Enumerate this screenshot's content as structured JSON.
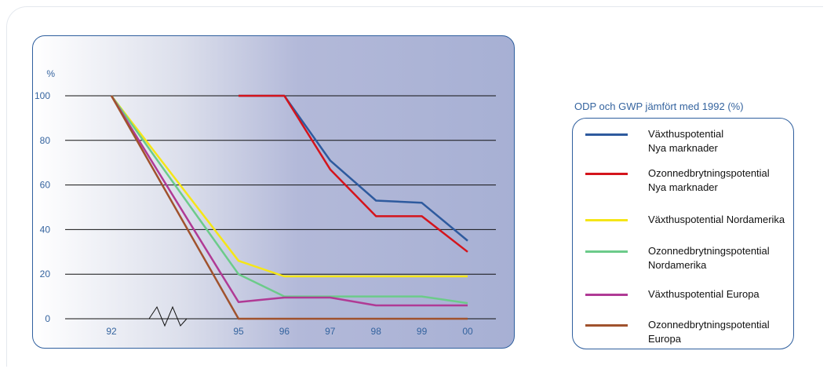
{
  "chart_data": {
    "type": "line",
    "x": [
      "92",
      "95",
      "96",
      "97",
      "98",
      "99",
      "00"
    ],
    "x_values": [
      92,
      95,
      96,
      97,
      98,
      99,
      100
    ],
    "axis_break_between": [
      "92",
      "95"
    ],
    "ylabel": "%",
    "yticks": [
      0,
      20,
      40,
      60,
      80,
      100
    ],
    "ylim": [
      0,
      100
    ],
    "grid": true,
    "legend_position": "right",
    "series": [
      {
        "name": "Växthuspotential\nNya marknader",
        "color": "#2e5a9e",
        "points": [
          [
            95,
            100
          ],
          [
            96,
            100
          ],
          [
            97,
            71
          ],
          [
            98,
            53
          ],
          [
            99,
            52
          ],
          [
            100,
            35
          ]
        ]
      },
      {
        "name": "Ozonnedbrytningspotential\nNya marknader",
        "color": "#d4141c",
        "points": [
          [
            95,
            100
          ],
          [
            96,
            100
          ],
          [
            97,
            67
          ],
          [
            98,
            46
          ],
          [
            99,
            46
          ],
          [
            100,
            30
          ]
        ]
      },
      {
        "name": "Växthuspotential Nordamerika",
        "color": "#f5e617",
        "points": [
          [
            92,
            100
          ],
          [
            95,
            26
          ],
          [
            96,
            19
          ],
          [
            97,
            19
          ],
          [
            98,
            19
          ],
          [
            99,
            19
          ],
          [
            100,
            19
          ]
        ]
      },
      {
        "name": "Ozonnedbrytningspotential\nNordamerika",
        "color": "#6ccb8a",
        "points": [
          [
            92,
            100
          ],
          [
            95,
            20
          ],
          [
            96,
            10
          ],
          [
            97,
            10
          ],
          [
            98,
            10
          ],
          [
            99,
            10
          ],
          [
            100,
            7
          ]
        ]
      },
      {
        "name": "Växthuspotential Europa",
        "color": "#b03a95",
        "points": [
          [
            92,
            100
          ],
          [
            95,
            7.5
          ],
          [
            96,
            9.5
          ],
          [
            97,
            9.5
          ],
          [
            98,
            6
          ],
          [
            99,
            6
          ],
          [
            100,
            6
          ]
        ]
      },
      {
        "name": "Ozonnedbrytningspotential\nEuropa",
        "color": "#a0522d",
        "points": [
          [
            92,
            100
          ],
          [
            95,
            0
          ],
          [
            96,
            0
          ],
          [
            97,
            0
          ],
          [
            98,
            0
          ],
          [
            99,
            0
          ],
          [
            100,
            0
          ]
        ]
      }
    ]
  },
  "legend": {
    "title": "ODP och GWP jämfört med 1992 (%)"
  },
  "colors": {
    "frame": "#2f5f9e",
    "tick_text": "#35649f",
    "grid": "#111111"
  }
}
